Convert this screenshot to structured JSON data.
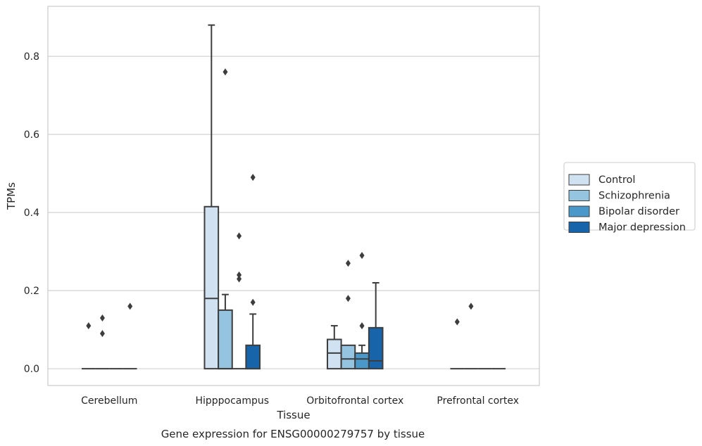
{
  "chart_data": {
    "type": "box",
    "xlabel": "Tissue",
    "ylabel": "TPMs",
    "caption": "Gene expression for ENSG00000279757 by tissue",
    "ylim": [
      -0.043,
      0.928
    ],
    "yticks": [
      "0.0",
      "0.2",
      "0.4",
      "0.6",
      "0.8"
    ],
    "ytick_values": [
      0.0,
      0.2,
      0.4,
      0.6,
      0.8
    ],
    "grid": true,
    "legend_position": "right",
    "categories": [
      "Cerebellum",
      "Hipppocampus",
      "Orbitofrontal cortex",
      "Prefrontal cortex"
    ],
    "series": [
      {
        "name": "Control",
        "color": "#d0e1f2",
        "boxes": [
          {
            "q1": 0,
            "median": 0,
            "q3": 0,
            "whislo": 0,
            "whishi": 0,
            "fliers": [
              0.11
            ]
          },
          {
            "q1": 0,
            "median": 0.18,
            "q3": 0.415,
            "whislo": 0,
            "whishi": 0.88,
            "fliers": []
          },
          {
            "q1": 0,
            "median": 0.04,
            "q3": 0.075,
            "whislo": 0,
            "whishi": 0.11,
            "fliers": []
          },
          {
            "q1": 0,
            "median": 0,
            "q3": 0,
            "whislo": 0,
            "whishi": 0,
            "fliers": [
              0.12
            ]
          }
        ]
      },
      {
        "name": "Schizophrenia",
        "color": "#94c4df",
        "boxes": [
          {
            "q1": 0,
            "median": 0,
            "q3": 0,
            "whislo": 0,
            "whishi": 0,
            "fliers": [
              0.09,
              0.13
            ]
          },
          {
            "q1": 0,
            "median": 0,
            "q3": 0.15,
            "whislo": 0,
            "whishi": 0.19,
            "fliers": [
              0.76
            ]
          },
          {
            "q1": 0,
            "median": 0.025,
            "q3": 0.06,
            "whislo": 0,
            "whishi": 0.06,
            "fliers": [
              0.18,
              0.27
            ]
          },
          {
            "q1": 0,
            "median": 0,
            "q3": 0,
            "whislo": 0,
            "whishi": 0,
            "fliers": [
              0.16
            ]
          }
        ]
      },
      {
        "name": "Bipolar disorder",
        "color": "#4a98c9",
        "boxes": [
          {
            "q1": 0,
            "median": 0,
            "q3": 0,
            "whislo": 0,
            "whishi": 0,
            "fliers": []
          },
          {
            "q1": 0,
            "median": 0,
            "q3": 0,
            "whislo": 0,
            "whishi": 0,
            "fliers": [
              0.23,
              0.24,
              0.34
            ]
          },
          {
            "q1": 0,
            "median": 0.025,
            "q3": 0.04,
            "whislo": 0,
            "whishi": 0.06,
            "fliers": [
              0.11,
              0.29
            ]
          },
          {
            "q1": 0,
            "median": 0,
            "q3": 0,
            "whislo": 0,
            "whishi": 0,
            "fliers": []
          }
        ]
      },
      {
        "name": "Major depression",
        "color": "#1764ab",
        "boxes": [
          {
            "q1": 0,
            "median": 0,
            "q3": 0,
            "whislo": 0,
            "whishi": 0,
            "fliers": [
              0.16
            ]
          },
          {
            "q1": 0,
            "median": 0,
            "q3": 0.06,
            "whislo": 0,
            "whishi": 0.14,
            "fliers": [
              0.17,
              0.49
            ]
          },
          {
            "q1": 0,
            "median": 0.02,
            "q3": 0.105,
            "whislo": 0,
            "whishi": 0.22,
            "fliers": []
          },
          {
            "q1": 0,
            "median": 0,
            "q3": 0,
            "whislo": 0,
            "whishi": 0,
            "fliers": []
          }
        ]
      }
    ]
  }
}
